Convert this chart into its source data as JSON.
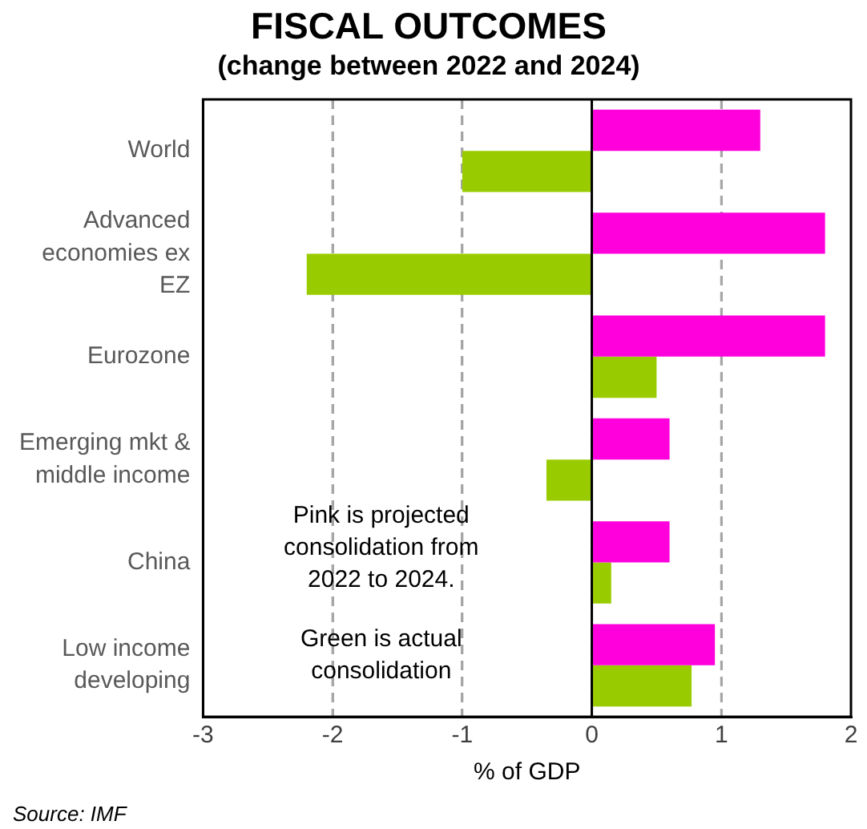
{
  "chart_data": {
    "type": "bar",
    "orientation": "horizontal",
    "title": "FISCAL OUTCOMES",
    "subtitle": "(change between 2022 and 2024)",
    "xlabel": "% of GDP",
    "categories": [
      "World",
      "Advanced economies ex EZ",
      "Eurozone",
      "Emerging mkt & middle income",
      "China",
      "Low income developing"
    ],
    "series": [
      {
        "color": "#ff00dd",
        "values": [
          1.3,
          1.8,
          1.8,
          0.6,
          0.6,
          0.95
        ]
      },
      {
        "color": "#99cc00",
        "values": [
          -1.0,
          -2.2,
          0.5,
          -0.35,
          0.15,
          0.77
        ]
      }
    ],
    "xlim": [
      -3,
      2
    ],
    "xticks": [
      -3,
      -2,
      -1,
      0,
      1,
      2
    ],
    "grid": "x",
    "line_style": "dashed",
    "ref_lines": [
      {
        "axis": "x",
        "value": 0,
        "color": "#000000"
      }
    ],
    "annotations": [
      "Pink is projected consolidation from 2022 to 2024.",
      "Green is actual consolidation",
      "Source: IMF"
    ]
  }
}
